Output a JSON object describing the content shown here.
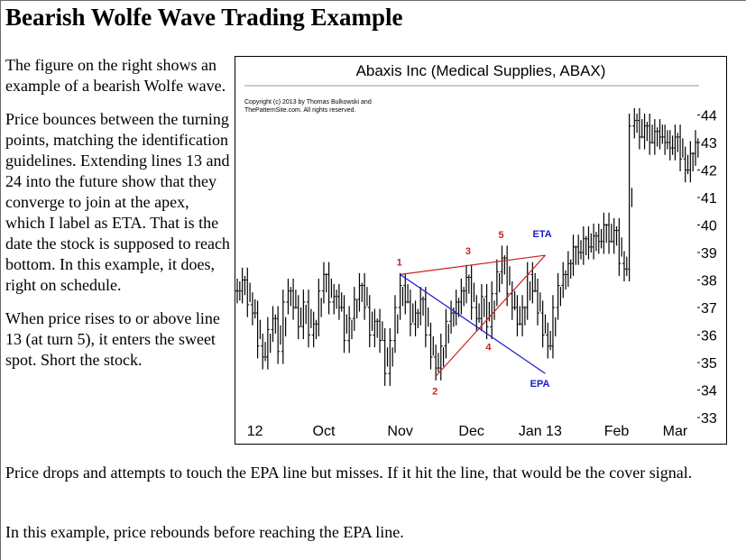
{
  "page": {
    "title": "Bearish Wolfe Wave Trading Example",
    "side_paragraphs": [
      "The figure on the right shows an example of a bearish Wolfe wave.",
      "Price bounces between the turning points, matching the identification guidelines. Extending lines 13 and 24 into the future show that they converge to join at the apex, which I label as ETA. That is the date the stock is supposed to reach bottom. In this example, it does, right on schedule.",
      "When price rises to or above line 13 (at turn 5), it enters the sweet spot. Short the stock."
    ],
    "bottom_paragraphs": [
      "Price drops and attempts to touch the EPA line but misses. If it hit the line, that would be the cover signal.",
      "In this example, price rebounds before reaching the EPA line."
    ]
  },
  "chart_data": {
    "type": "ohlc",
    "title": "Abaxis Inc (Medical Supplies, ABAX)",
    "copyright": "Copyright (c) 2013 by Thomas Bulkowski and ThePatternSite.com. All rights reserved.",
    "xlabel": "",
    "ylabel": "",
    "ylim": [
      33,
      45
    ],
    "x_tick_labels": [
      "12",
      "Oct",
      "Nov",
      "Dec",
      "Jan 13",
      "Feb",
      "Mar"
    ],
    "y_tick_labels": [
      "33",
      "34",
      "35",
      "36",
      "37",
      "38",
      "39",
      "40",
      "41",
      "42",
      "43",
      "44"
    ],
    "turn_points": [
      {
        "label": "1",
        "day": 64,
        "price": 38.2
      },
      {
        "label": "2",
        "day": 78,
        "price": 34.5
      },
      {
        "label": "3",
        "day": 91,
        "price": 38.6
      },
      {
        "label": "4",
        "day": 99,
        "price": 36.1
      },
      {
        "label": "5",
        "day": 104,
        "price": 39.2
      }
    ],
    "annotations": [
      {
        "label": "ETA",
        "day": 121,
        "price": 39.1
      },
      {
        "label": "EPA",
        "day": 120,
        "price": 34.7
      }
    ],
    "trend_lines": [
      {
        "name": "line 1-3 to ETA",
        "from": {
          "day": 64,
          "price": 38.2
        },
        "to": {
          "day": 121,
          "price": 38.9
        },
        "color": "#cc2222"
      },
      {
        "name": "line 2-4 to ETA",
        "from": {
          "day": 78,
          "price": 34.5
        },
        "to": {
          "day": 121,
          "price": 38.9
        },
        "color": "#cc2222"
      },
      {
        "name": "line 1-4 to EPA",
        "from": {
          "day": 64,
          "price": 38.2
        },
        "to": {
          "day": 121,
          "price": 34.6
        },
        "color": "#1a1acc"
      }
    ],
    "series": [
      {
        "name": "price",
        "points": [
          [
            0,
            37.6
          ],
          [
            2,
            38.0
          ],
          [
            4,
            37.1
          ],
          [
            6,
            36.8
          ],
          [
            8,
            35.6
          ],
          [
            10,
            35.2
          ],
          [
            12,
            36.2
          ],
          [
            14,
            36.6
          ],
          [
            16,
            35.4
          ],
          [
            18,
            37.2
          ],
          [
            20,
            37.6
          ],
          [
            22,
            37.0
          ],
          [
            24,
            36.3
          ],
          [
            26,
            37.2
          ],
          [
            28,
            36.0
          ],
          [
            30,
            36.4
          ],
          [
            32,
            37.6
          ],
          [
            34,
            38.2
          ],
          [
            36,
            37.2
          ],
          [
            38,
            37.4
          ],
          [
            40,
            37.0
          ],
          [
            42,
            35.8
          ],
          [
            44,
            36.6
          ],
          [
            46,
            37.3
          ],
          [
            48,
            37.8
          ],
          [
            50,
            37.0
          ],
          [
            52,
            36.0
          ],
          [
            54,
            36.5
          ],
          [
            56,
            35.8
          ],
          [
            58,
            34.6
          ],
          [
            60,
            35.8
          ],
          [
            62,
            37.0
          ],
          [
            64,
            37.8
          ],
          [
            66,
            37.2
          ],
          [
            68,
            36.4
          ],
          [
            70,
            36.8
          ],
          [
            72,
            37.3
          ],
          [
            74,
            36.0
          ],
          [
            76,
            35.2
          ],
          [
            78,
            34.8
          ],
          [
            80,
            35.6
          ],
          [
            82,
            36.5
          ],
          [
            84,
            36.8
          ],
          [
            86,
            37.2
          ],
          [
            88,
            37.6
          ],
          [
            90,
            38.1
          ],
          [
            92,
            37.0
          ],
          [
            94,
            36.6
          ],
          [
            96,
            37.4
          ],
          [
            98,
            36.3
          ],
          [
            100,
            37.5
          ],
          [
            102,
            38.3
          ],
          [
            104,
            38.8
          ],
          [
            106,
            37.5
          ],
          [
            108,
            37.0
          ],
          [
            110,
            36.4
          ],
          [
            112,
            37.0
          ],
          [
            114,
            38.2
          ],
          [
            116,
            37.6
          ],
          [
            118,
            36.8
          ],
          [
            120,
            36.0
          ],
          [
            122,
            35.6
          ],
          [
            124,
            37.0
          ],
          [
            126,
            37.8
          ],
          [
            128,
            38.2
          ],
          [
            130,
            38.6
          ],
          [
            132,
            39.2
          ],
          [
            134,
            39.0
          ],
          [
            136,
            39.5
          ],
          [
            138,
            39.2
          ],
          [
            140,
            39.6
          ],
          [
            142,
            39.4
          ],
          [
            144,
            40.0
          ],
          [
            146,
            39.4
          ],
          [
            148,
            39.8
          ],
          [
            150,
            38.6
          ],
          [
            152,
            38.4
          ],
          [
            154,
            43.6
          ],
          [
            156,
            43.8
          ],
          [
            158,
            43.2
          ],
          [
            160,
            43.6
          ],
          [
            162,
            43.0
          ],
          [
            164,
            43.4
          ],
          [
            166,
            43.2
          ],
          [
            168,
            43.0
          ],
          [
            170,
            42.8
          ],
          [
            172,
            43.2
          ],
          [
            174,
            42.4
          ],
          [
            176,
            42.0
          ],
          [
            178,
            42.6
          ],
          [
            180,
            43.0
          ]
        ]
      }
    ]
  }
}
